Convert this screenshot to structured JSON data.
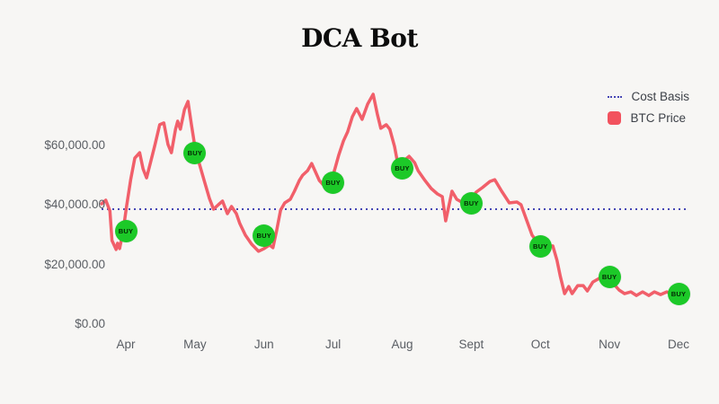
{
  "title": "DCA Bot",
  "buy_label": "BUY",
  "colors": {
    "background": "#f7f6f4",
    "price_line": "#f15f6a",
    "cost_basis_line": "#4646b4",
    "buy_marker": "#1cc928",
    "buy_marker_text": "#032803",
    "axis_text": "#5a5e64",
    "legend_text": "#3d4148",
    "title_text": "#0c0c0c"
  },
  "legend": [
    {
      "label": "Cost Basis",
      "marker": "dotted-line",
      "color": "#4646b4"
    },
    {
      "label": "BTC Price",
      "marker": "rounded-square",
      "color": "#f2525e"
    }
  ],
  "chart_data": {
    "type": "line",
    "title": "DCA Bot",
    "grid": false,
    "legend_position": "top-right",
    "x_axis": {
      "labels": [
        "Apr",
        "May",
        "Jun",
        "Jul",
        "Aug",
        "Sept",
        "Oct",
        "Nov",
        "Dec"
      ],
      "months": [
        4,
        5,
        6,
        7,
        8,
        9,
        10,
        11,
        12
      ]
    },
    "y_axis": {
      "tick_labels": [
        "$0.00",
        "$20,000.00",
        "$40,000.00",
        "$60,000.00"
      ],
      "tick_values": [
        0,
        20000,
        40000,
        60000
      ],
      "range": [
        0,
        78000
      ],
      "unit": "USD"
    },
    "cost_basis": 38500,
    "series": [
      {
        "name": "BTC Price",
        "kind": "line",
        "color": "#f15f6a",
        "points": [
          [
            3.65,
            40300
          ],
          [
            3.71,
            41500
          ],
          [
            3.77,
            37900
          ],
          [
            3.8,
            28000
          ],
          [
            3.86,
            25000
          ],
          [
            3.88,
            27100
          ],
          [
            3.91,
            25300
          ],
          [
            3.96,
            31000
          ],
          [
            4.01,
            39400
          ],
          [
            4.07,
            48400
          ],
          [
            4.13,
            55600
          ],
          [
            4.2,
            57400
          ],
          [
            4.25,
            52000
          ],
          [
            4.3,
            49000
          ],
          [
            4.36,
            54400
          ],
          [
            4.42,
            59900
          ],
          [
            4.49,
            66800
          ],
          [
            4.55,
            67400
          ],
          [
            4.61,
            60200
          ],
          [
            4.66,
            57400
          ],
          [
            4.72,
            65300
          ],
          [
            4.75,
            68000
          ],
          [
            4.79,
            65300
          ],
          [
            4.85,
            71900
          ],
          [
            4.9,
            74600
          ],
          [
            4.95,
            66800
          ],
          [
            5.01,
            58000
          ],
          [
            5.07,
            53200
          ],
          [
            5.13,
            48400
          ],
          [
            5.21,
            42100
          ],
          [
            5.27,
            38500
          ],
          [
            5.34,
            40000
          ],
          [
            5.4,
            41200
          ],
          [
            5.47,
            37000
          ],
          [
            5.53,
            39400
          ],
          [
            5.6,
            37000
          ],
          [
            5.65,
            33700
          ],
          [
            5.73,
            29800
          ],
          [
            5.82,
            26800
          ],
          [
            5.92,
            24400
          ],
          [
            6.0,
            25300
          ],
          [
            6.08,
            26500
          ],
          [
            6.13,
            25600
          ],
          [
            6.18,
            31000
          ],
          [
            6.24,
            38200
          ],
          [
            6.3,
            40600
          ],
          [
            6.38,
            41800
          ],
          [
            6.44,
            44500
          ],
          [
            6.51,
            48100
          ],
          [
            6.56,
            49900
          ],
          [
            6.63,
            51400
          ],
          [
            6.69,
            53800
          ],
          [
            6.76,
            50200
          ],
          [
            6.8,
            48100
          ],
          [
            6.86,
            46600
          ],
          [
            6.91,
            46300
          ],
          [
            6.97,
            47500
          ],
          [
            7.03,
            52300
          ],
          [
            7.08,
            56500
          ],
          [
            7.15,
            61400
          ],
          [
            7.21,
            64400
          ],
          [
            7.28,
            69500
          ],
          [
            7.34,
            72200
          ],
          [
            7.42,
            68600
          ],
          [
            7.5,
            73700
          ],
          [
            7.58,
            77000
          ],
          [
            7.64,
            70400
          ],
          [
            7.69,
            65600
          ],
          [
            7.77,
            66800
          ],
          [
            7.82,
            65300
          ],
          [
            7.89,
            59500
          ],
          [
            7.94,
            53200
          ],
          [
            8.01,
            54400
          ],
          [
            8.1,
            56200
          ],
          [
            8.18,
            54100
          ],
          [
            8.23,
            51400
          ],
          [
            8.33,
            48100
          ],
          [
            8.42,
            45400
          ],
          [
            8.51,
            43600
          ],
          [
            8.58,
            42700
          ],
          [
            8.63,
            34600
          ],
          [
            8.72,
            44500
          ],
          [
            8.79,
            41800
          ],
          [
            8.88,
            40600
          ],
          [
            8.97,
            40600
          ],
          [
            9.07,
            44200
          ],
          [
            9.16,
            45700
          ],
          [
            9.27,
            47800
          ],
          [
            9.34,
            48400
          ],
          [
            9.44,
            44500
          ],
          [
            9.55,
            40600
          ],
          [
            9.66,
            40900
          ],
          [
            9.72,
            40000
          ],
          [
            9.81,
            34300
          ],
          [
            9.88,
            29800
          ],
          [
            10.0,
            26200
          ],
          [
            10.11,
            25900
          ],
          [
            10.18,
            26200
          ],
          [
            10.24,
            21400
          ],
          [
            10.29,
            15900
          ],
          [
            10.35,
            10200
          ],
          [
            10.41,
            12600
          ],
          [
            10.46,
            10200
          ],
          [
            10.54,
            12900
          ],
          [
            10.62,
            12900
          ],
          [
            10.68,
            11100
          ],
          [
            10.76,
            14100
          ],
          [
            10.85,
            15300
          ],
          [
            10.92,
            16500
          ],
          [
            10.98,
            15900
          ],
          [
            11.06,
            13500
          ],
          [
            11.14,
            11400
          ],
          [
            11.22,
            10200
          ],
          [
            11.31,
            10800
          ],
          [
            11.39,
            9600
          ],
          [
            11.48,
            10800
          ],
          [
            11.57,
            9600
          ],
          [
            11.65,
            10800
          ],
          [
            11.74,
            9900
          ],
          [
            11.83,
            10800
          ],
          [
            11.91,
            9900
          ],
          [
            12.0,
            10200
          ]
        ]
      },
      {
        "name": "DCA Buys",
        "kind": "marker",
        "label": "BUY",
        "color": "#1cc928",
        "points": [
          [
            4,
            31000
          ],
          [
            5,
            57400
          ],
          [
            6,
            29500
          ],
          [
            7,
            47500
          ],
          [
            8,
            52300
          ],
          [
            9,
            40600
          ],
          [
            10,
            25900
          ],
          [
            11,
            15900
          ],
          [
            12,
            10200
          ]
        ]
      }
    ]
  }
}
